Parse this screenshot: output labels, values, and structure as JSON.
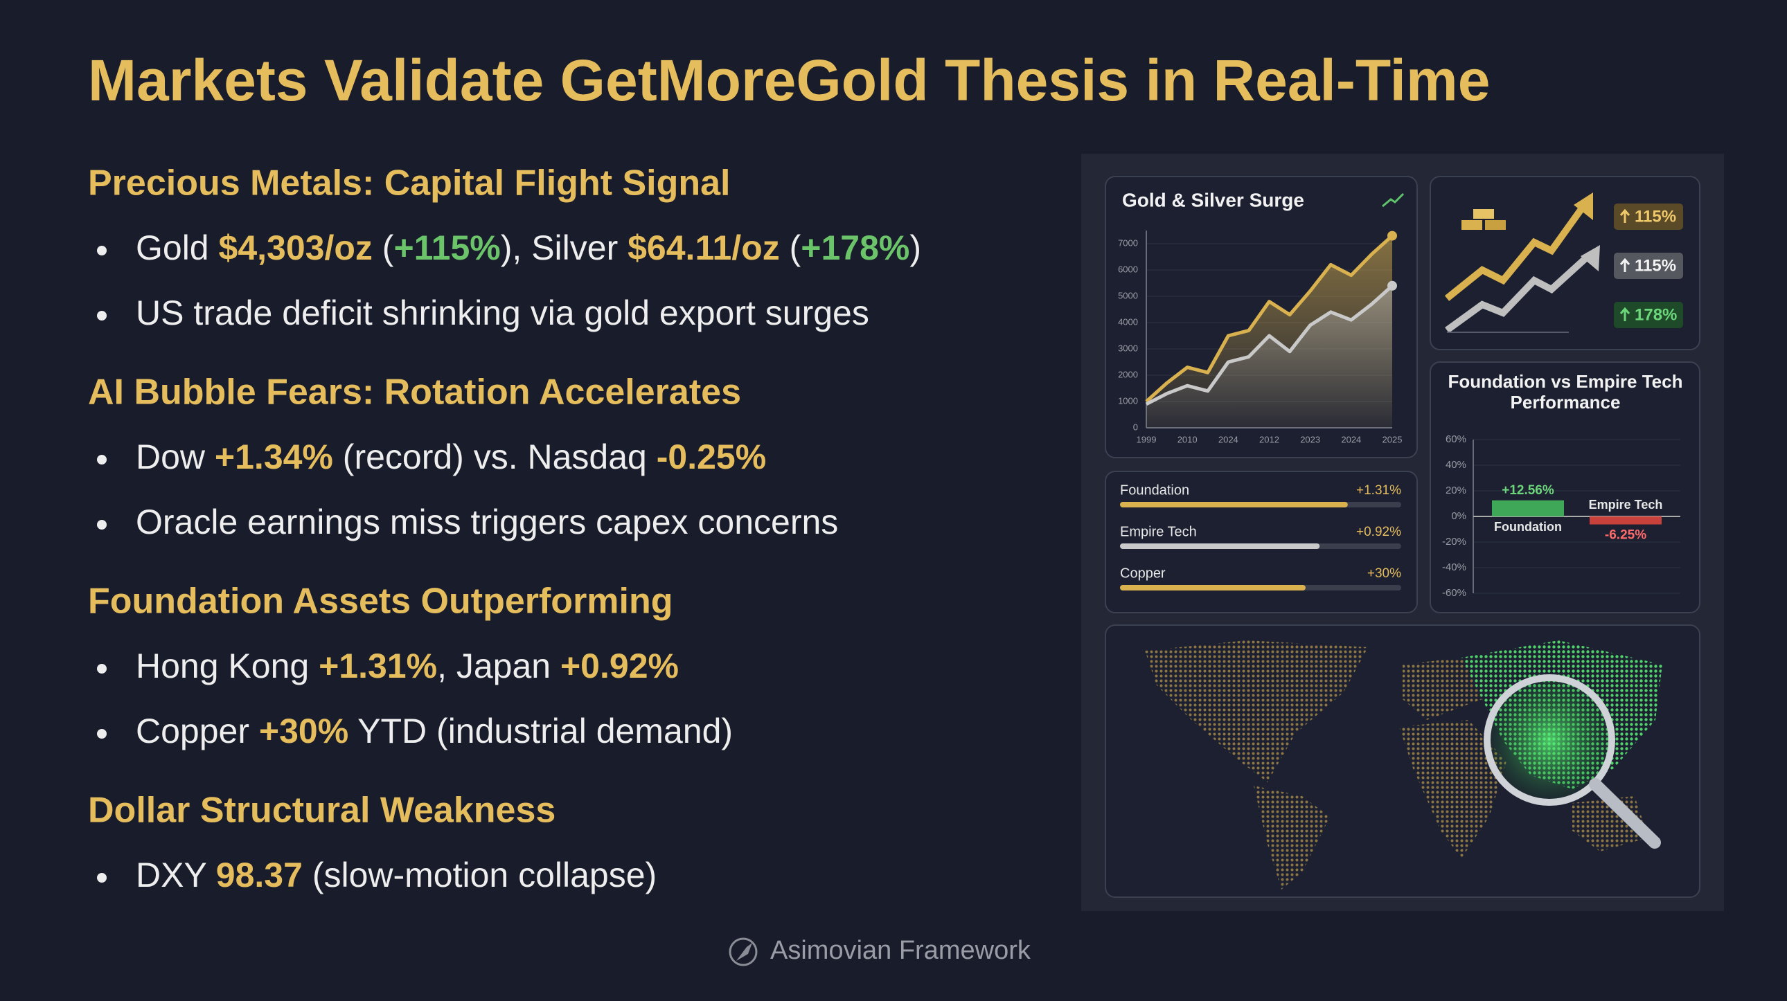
{
  "title": "Markets Validate GetMoreGold Thesis in Real-Time",
  "sections": [
    {
      "heading": "Precious Metals: Capital Flight Signal",
      "bullets": [
        [
          {
            "t": "Gold "
          },
          {
            "t": "$4,303/oz",
            "s": "gold"
          },
          {
            "t": " ("
          },
          {
            "t": "+115%",
            "s": "green"
          },
          {
            "t": "), Silver "
          },
          {
            "t": "$64.11/oz",
            "s": "gold"
          },
          {
            "t": " ("
          },
          {
            "t": "+178%",
            "s": "green"
          },
          {
            "t": ")"
          }
        ],
        [
          {
            "t": "US trade deficit shrinking via gold export surges"
          }
        ]
      ]
    },
    {
      "heading": "AI Bubble Fears: Rotation Accelerates",
      "bullets": [
        [
          {
            "t": "Dow "
          },
          {
            "t": "+1.34%",
            "s": "gold"
          },
          {
            "t": " (record) vs. Nasdaq "
          },
          {
            "t": "-0.25%",
            "s": "gold"
          }
        ],
        [
          {
            "t": "Oracle earnings miss triggers capex concerns"
          }
        ]
      ]
    },
    {
      "heading": "Foundation Assets Outperforming",
      "bullets": [
        [
          {
            "t": "Hong Kong "
          },
          {
            "t": "+1.31%",
            "s": "gold"
          },
          {
            "t": ", Japan "
          },
          {
            "t": "+0.92%",
            "s": "gold"
          }
        ],
        [
          {
            "t": "Copper "
          },
          {
            "t": "+30%",
            "s": "gold"
          },
          {
            "t": " YTD (industrial demand)"
          }
        ]
      ]
    },
    {
      "heading": "Dollar Structural Weakness",
      "bullets": [
        [
          {
            "t": "DXY "
          },
          {
            "t": "98.37",
            "s": "gold"
          },
          {
            "t": " (slow-motion collapse)"
          }
        ]
      ]
    }
  ],
  "footer": "Asimovian Framework",
  "dashboard": {
    "line_chart": {
      "type": "line",
      "title": "Gold & Silver Surge",
      "categories": [
        "1999",
        null,
        "2010",
        null,
        "2024",
        null,
        "2012",
        null,
        "2023",
        null,
        "2024",
        null,
        "2025"
      ],
      "series": [
        {
          "color": "#d9b14f",
          "values": [
            1000,
            1700,
            2300,
            2100,
            3500,
            3700,
            4800,
            4300,
            5200,
            6200,
            5800,
            6600,
            7300
          ]
        },
        {
          "color": "#c9c9c9",
          "values": [
            900,
            1300,
            1600,
            1400,
            2500,
            2700,
            3500,
            2900,
            3900,
            4400,
            4100,
            4700,
            5400
          ]
        }
      ],
      "ylim": [
        0,
        7500
      ],
      "yticks": [
        0,
        1000,
        2000,
        3000,
        4000,
        5000,
        6000,
        7000
      ]
    },
    "badges": [
      {
        "text": "115%",
        "style": "gold"
      },
      {
        "text": "115%",
        "style": "silver"
      },
      {
        "text": "178%",
        "style": "green"
      }
    ],
    "progress": [
      {
        "label": "Foundation",
        "value_label": "+1.31%",
        "fill": 81,
        "color": "#d9b14f"
      },
      {
        "label": "Empire Tech",
        "value_label": "+0.92%",
        "fill": 71,
        "color": "#c9c9c9"
      },
      {
        "label": "Copper",
        "value_label": "+30%",
        "fill": 66,
        "color": "#d9b14f"
      }
    ],
    "bar_chart": {
      "type": "bar",
      "title": "Foundation vs Empire Tech Performance",
      "categories": [
        "Foundation",
        "Empire Tech"
      ],
      "values": [
        12.56,
        -6.25
      ],
      "value_labels": [
        "+12.56%",
        "-6.25%"
      ],
      "colors": [
        "#3fa858",
        "#c9413b"
      ],
      "label_colors": [
        "#6cd67a",
        "#ff6b6b"
      ],
      "ylim": [
        -60,
        60
      ],
      "yticks": [
        {
          "value": -60,
          "label": "-60%"
        },
        {
          "value": -40,
          "label": "-40%"
        },
        {
          "value": -20,
          "label": "-20%"
        },
        {
          "value": 0,
          "label": "0%"
        },
        {
          "value": 20,
          "label": "20%"
        },
        {
          "value": 40,
          "label": "40%"
        },
        {
          "value": 60,
          "label": "60%"
        }
      ]
    }
  }
}
